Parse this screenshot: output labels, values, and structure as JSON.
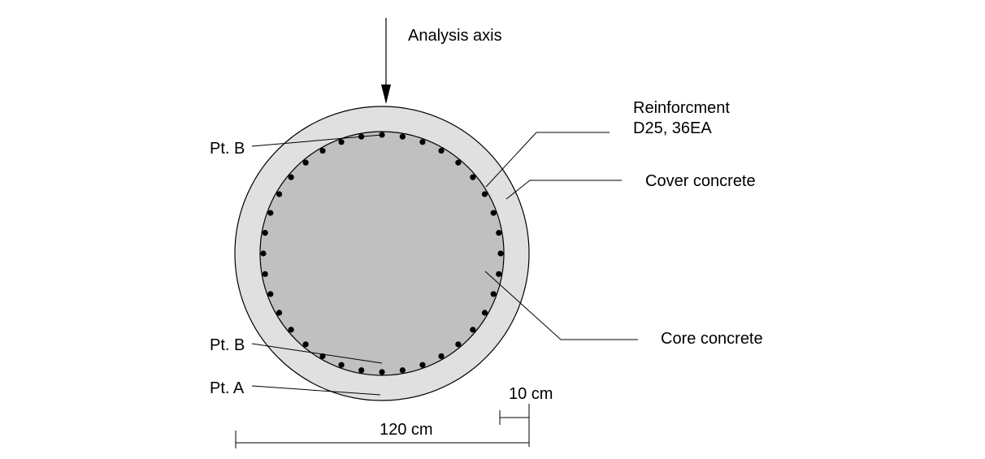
{
  "labels": {
    "analysis_axis": "Analysis axis",
    "reinforcement_line1": "Reinforcment",
    "reinforcement_line2": "D25, 36EA",
    "cover_concrete": "Cover concrete",
    "core_concrete": "Core concrete",
    "pt_b_top": "Pt. B",
    "pt_b_bottom": "Pt. B",
    "pt_a": "Pt. A",
    "dim_cover": "10 cm",
    "dim_diameter": "120 cm"
  },
  "section": {
    "bar_count": 36
  },
  "colors": {
    "cover": "#e0e0e0",
    "core": "#c0c0c0",
    "bar": "#000000",
    "line": "#000000"
  }
}
